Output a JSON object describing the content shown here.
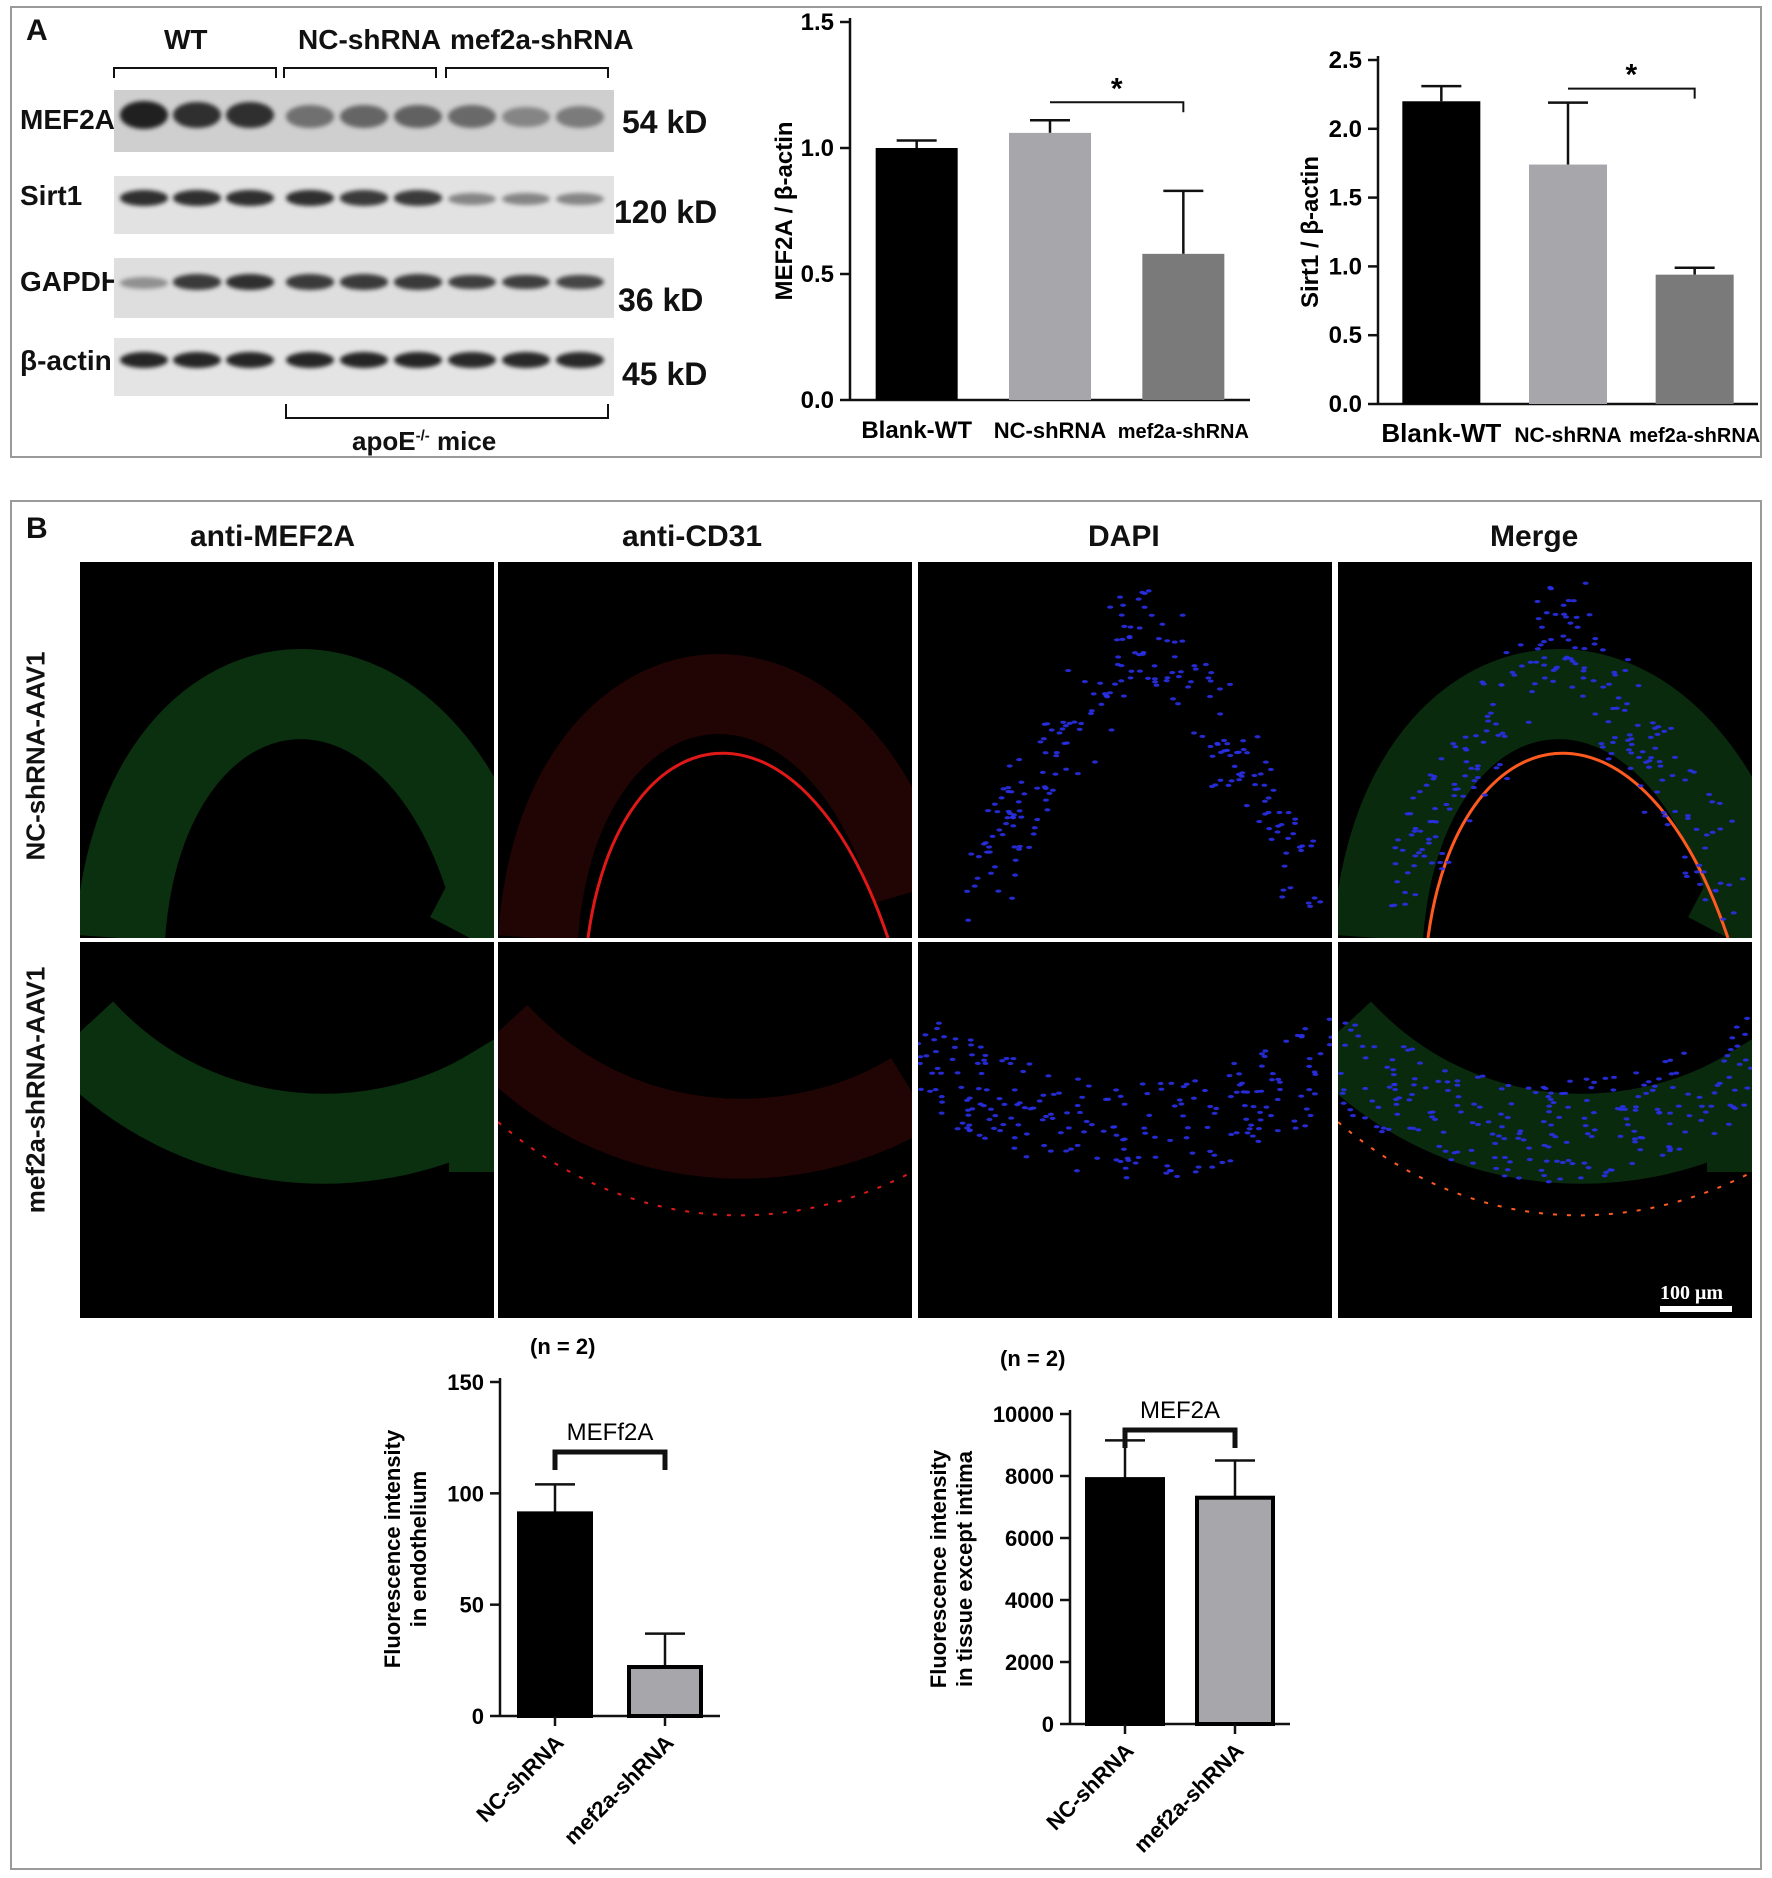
{
  "panel_a": {
    "label": "A",
    "group_labels": [
      "WT",
      "NC-shRNA",
      "mef2a-shRNA"
    ],
    "row_labels": [
      "MEF2A",
      "Sirt1",
      "GAPDH",
      "β-actin"
    ],
    "kd_labels": [
      "54 kD",
      "120 kD",
      "36 kD",
      "45 kD"
    ],
    "mice_label": "apoE",
    "mice_sup": "-/-",
    "mice_suffix": " mice",
    "band_intensity": [
      [
        0.92,
        0.85,
        0.85,
        0.55,
        0.6,
        0.62,
        0.58,
        0.45,
        0.5
      ],
      [
        0.85,
        0.85,
        0.85,
        0.85,
        0.8,
        0.8,
        0.45,
        0.45,
        0.45
      ],
      [
        0.4,
        0.8,
        0.85,
        0.8,
        0.8,
        0.8,
        0.78,
        0.78,
        0.75
      ],
      [
        0.9,
        0.9,
        0.9,
        0.9,
        0.9,
        0.9,
        0.88,
        0.88,
        0.88
      ]
    ],
    "band_colors": [
      "#1e1e1e",
      "#c8c8c8"
    ]
  },
  "panel_b": {
    "label": "B",
    "column_titles": [
      "anti-MEF2A",
      "anti-CD31",
      "DAPI",
      "Merge"
    ],
    "row_titles": [
      "NC-shRNA-AAV1",
      "mef2a-shRNA-AAV1"
    ],
    "scale_bar": "100 μm",
    "channel_colors": [
      "#1f8a2a",
      "#e01818",
      "#2a30e8"
    ]
  },
  "colors": {
    "black": "#000000",
    "light_gray": "#a6a6ab",
    "dark_gray": "#7a7a7a"
  },
  "chart_data": [
    {
      "type": "bar",
      "categories": [
        "Blank-WT",
        "NC-shRNA",
        "mef2a-shRNA"
      ],
      "values": [
        1.0,
        1.06,
        0.58
      ],
      "errors": [
        0.03,
        0.05,
        0.25
      ],
      "colors": [
        "#000000",
        "#a6a6ab",
        "#7a7a7a"
      ],
      "ylabel": "MEF2A / β-actin",
      "ylim": [
        0,
        1.5
      ],
      "yticks": [
        "0.0",
        "0.5",
        "1.0",
        "1.5"
      ],
      "annotation": "*",
      "annotation_between": [
        1,
        2
      ]
    },
    {
      "type": "bar",
      "categories": [
        "Blank-WT",
        "NC-shRNA",
        "mef2a-shRNA"
      ],
      "values": [
        2.2,
        1.74,
        0.94
      ],
      "errors": [
        0.11,
        0.45,
        0.05
      ],
      "colors": [
        "#000000",
        "#a6a6ab",
        "#7a7a7a"
      ],
      "ylabel": "Sirt1 / β-actin",
      "ylim": [
        0,
        2.5
      ],
      "yticks": [
        "0.0",
        "0.5",
        "1.0",
        "1.5",
        "2.0",
        "2.5"
      ],
      "annotation": "*",
      "annotation_between": [
        1,
        2
      ]
    },
    {
      "type": "bar",
      "categories": [
        "NC-shRNA",
        "mef2a-shRNA"
      ],
      "values": [
        91,
        22
      ],
      "errors": [
        13,
        15
      ],
      "colors": [
        "#000000",
        "#a6a6ab"
      ],
      "ylabel_lines": [
        "Fluorescence intensity",
        "in endothelium"
      ],
      "ylim": [
        0,
        150
      ],
      "yticks": [
        "0",
        "50",
        "100",
        "150"
      ],
      "n_label": "(n = 2)",
      "bracket_label": "MEFf2A"
    },
    {
      "type": "bar",
      "categories": [
        "NC-shRNA",
        "mef2a-shRNA"
      ],
      "values": [
        7900,
        7300
      ],
      "errors": [
        1250,
        1200
      ],
      "colors": [
        "#000000",
        "#a6a6ab"
      ],
      "ylabel_lines": [
        "Fluorescence intensity",
        "in tissue except intima"
      ],
      "ylim": [
        0,
        10000
      ],
      "yticks": [
        "0",
        "2000",
        "4000",
        "6000",
        "8000",
        "10000"
      ],
      "n_label": "(n = 2)",
      "bracket_label": "MEF2A"
    }
  ]
}
